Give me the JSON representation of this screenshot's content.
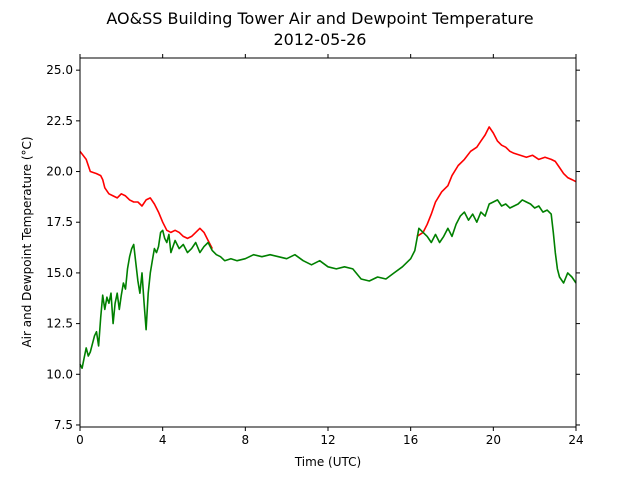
{
  "chart_data": {
    "type": "line",
    "title": "AO&SS Building Tower Air and Dewpoint Temperature",
    "subtitle": "2012-05-26",
    "xlabel": "Time (UTC)",
    "ylabel": "Air and Dewpoint Temperature (°C)",
    "xlim": [
      0,
      24
    ],
    "ylim": [
      7.4,
      25.6
    ],
    "xticks": [
      0,
      4,
      8,
      12,
      16,
      20,
      24
    ],
    "xtick_labels": [
      "0",
      "4",
      "8",
      "12",
      "16",
      "20",
      "24"
    ],
    "yticks": [
      7.5,
      10.0,
      12.5,
      15.0,
      17.5,
      20.0,
      22.5,
      25.0
    ],
    "ytick_labels": [
      "7.5",
      "10.0",
      "12.5",
      "15.0",
      "17.5",
      "20.0",
      "22.5",
      "25.0"
    ],
    "grid": false,
    "series": [
      {
        "color": "#ff0000",
        "x": [
          0,
          0.3,
          0.5,
          0.8,
          1.0,
          1.1,
          1.2,
          1.4,
          1.6,
          1.8,
          2.0,
          2.2,
          2.4,
          2.6,
          2.8,
          3.0,
          3.2,
          3.4,
          3.6,
          3.8,
          4.0,
          4.2,
          4.4,
          4.6,
          4.8,
          5.0,
          5.2,
          5.4,
          5.6,
          5.8,
          6.0,
          6.2,
          6.4
        ],
        "values": [
          21.0,
          20.6,
          20.0,
          19.9,
          19.8,
          19.6,
          19.2,
          18.9,
          18.8,
          18.7,
          18.9,
          18.8,
          18.6,
          18.5,
          18.5,
          18.3,
          18.6,
          18.7,
          18.4,
          18.0,
          17.5,
          17.1,
          17.0,
          17.1,
          17.0,
          16.8,
          16.7,
          16.8,
          17.0,
          17.2,
          17.0,
          16.6,
          16.2
        ]
      },
      {
        "color": "#ff0000",
        "x": [
          16.3,
          16.6,
          16.8,
          17.0,
          17.2,
          17.5,
          17.8,
          18.0,
          18.3,
          18.6,
          18.9,
          19.2,
          19.4,
          19.6,
          19.7,
          19.8,
          20.0,
          20.2,
          20.4,
          20.6,
          20.8,
          21.0,
          21.3,
          21.6,
          21.9,
          22.2,
          22.5,
          22.8,
          23.0,
          23.2,
          23.4,
          23.6,
          23.8,
          24.0
        ],
        "values": [
          16.8,
          17.0,
          17.4,
          17.9,
          18.5,
          19.0,
          19.3,
          19.8,
          20.3,
          20.6,
          21.0,
          21.2,
          21.5,
          21.8,
          22.0,
          22.2,
          21.9,
          21.5,
          21.3,
          21.2,
          21.0,
          20.9,
          20.8,
          20.7,
          20.8,
          20.6,
          20.7,
          20.6,
          20.5,
          20.2,
          19.9,
          19.7,
          19.6,
          19.5
        ]
      },
      {
        "color": "#008000",
        "x": [
          0,
          0.1,
          0.2,
          0.3,
          0.4,
          0.5,
          0.6,
          0.7,
          0.8,
          0.9,
          1.0,
          1.1,
          1.2,
          1.3,
          1.4,
          1.5,
          1.6,
          1.7,
          1.8,
          1.9,
          2.0,
          2.1,
          2.2,
          2.3,
          2.4,
          2.5,
          2.6,
          2.7,
          2.8,
          2.9,
          3.0,
          3.1,
          3.2,
          3.3,
          3.4,
          3.5,
          3.6,
          3.7,
          3.8,
          3.9,
          4.0,
          4.1,
          4.2,
          4.3,
          4.4,
          4.6,
          4.8,
          5.0,
          5.2,
          5.4,
          5.6,
          5.8,
          6.0,
          6.2,
          6.4,
          6.6,
          6.8,
          7.0,
          7.3,
          7.6,
          8.0,
          8.4,
          8.8,
          9.2,
          9.6,
          10.0,
          10.4,
          10.8,
          11.2,
          11.6,
          12.0,
          12.4,
          12.8,
          13.2,
          13.6,
          14.0,
          14.4,
          14.8,
          15.2,
          15.6,
          16.0,
          16.2,
          16.4,
          16.6,
          16.8,
          17.0,
          17.2,
          17.4,
          17.6,
          17.8,
          18.0,
          18.2,
          18.4,
          18.6,
          18.8,
          19.0,
          19.2,
          19.4,
          19.6,
          19.8,
          20.0,
          20.2,
          20.4,
          20.6,
          20.8,
          21.0,
          21.2,
          21.4,
          21.6,
          21.8,
          22.0,
          22.2,
          22.4,
          22.6,
          22.8,
          22.9,
          23.0,
          23.1,
          23.2,
          23.4,
          23.6,
          23.8,
          24.0
        ],
        "values": [
          10.5,
          10.3,
          10.8,
          11.3,
          10.9,
          11.1,
          11.5,
          11.9,
          12.1,
          11.4,
          12.8,
          13.9,
          13.2,
          13.8,
          13.5,
          14.0,
          12.5,
          13.5,
          14.0,
          13.2,
          13.9,
          14.5,
          14.2,
          15.2,
          15.8,
          16.2,
          16.4,
          15.5,
          14.6,
          14.0,
          15.0,
          13.5,
          12.2,
          14.0,
          15.0,
          15.6,
          16.2,
          16.0,
          16.3,
          17.0,
          17.1,
          16.7,
          16.5,
          16.9,
          16.0,
          16.6,
          16.2,
          16.4,
          16.0,
          16.2,
          16.5,
          16.0,
          16.3,
          16.5,
          16.1,
          15.9,
          15.8,
          15.6,
          15.7,
          15.6,
          15.7,
          15.9,
          15.8,
          15.9,
          15.8,
          15.7,
          15.9,
          15.6,
          15.4,
          15.6,
          15.3,
          15.2,
          15.3,
          15.2,
          14.7,
          14.6,
          14.8,
          14.7,
          15.0,
          15.3,
          15.7,
          16.1,
          17.2,
          17.0,
          16.8,
          16.5,
          16.9,
          16.5,
          16.8,
          17.2,
          16.8,
          17.4,
          17.8,
          18.0,
          17.6,
          17.9,
          17.5,
          18.0,
          17.8,
          18.4,
          18.5,
          18.6,
          18.3,
          18.4,
          18.2,
          18.3,
          18.4,
          18.6,
          18.5,
          18.4,
          18.2,
          18.3,
          18.0,
          18.1,
          17.9,
          17.0,
          16.0,
          15.2,
          14.8,
          14.5,
          15.0,
          14.8,
          14.5
        ]
      }
    ]
  }
}
